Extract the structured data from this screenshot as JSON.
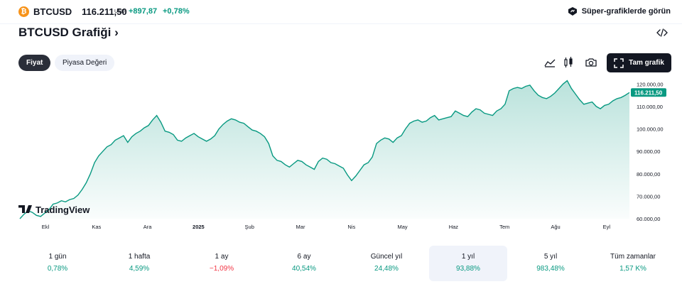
{
  "header": {
    "coin_glyph": "₿",
    "ticker": "BTCUSD",
    "price": "116.211,50",
    "price_unit": "USD",
    "change_abs": "+897,87",
    "change_pct": "+0,78%",
    "supercharts_label": "Süper-grafiklerde görün"
  },
  "page": {
    "title": "BTCUSD Grafiği",
    "title_chevron": "›"
  },
  "tabs": [
    {
      "label": "Fiyat",
      "active": true
    },
    {
      "label": "Piyasa Değeri",
      "active": false
    }
  ],
  "toolbar": {
    "icons": [
      "area-chart-icon",
      "candles-icon",
      "camera-icon"
    ],
    "fullchart_label": "Tam grafik"
  },
  "watermark": "TradingView",
  "colors": {
    "line": "#089981",
    "positive": "#089981",
    "negative": "#f23645",
    "price_tag": "#089981"
  },
  "chart_data": {
    "type": "area",
    "x_tick_labels": [
      "Ekl",
      "Kas",
      "Ara",
      "2025",
      "Şub",
      "Mar",
      "Nis",
      "May",
      "Haz",
      "Tem",
      "Ağu",
      "Eyl"
    ],
    "y_tick_labels": [
      "120.000,00",
      "110.000,00",
      "100.000,00",
      "90.000,00",
      "80.000,00",
      "70.000,00",
      "60.000,00"
    ],
    "ylim": [
      60000,
      122000
    ],
    "last_price_label": "116.211,50",
    "last_value": 116211.5,
    "values": [
      60000,
      62000,
      63500,
      62800,
      61500,
      61000,
      62500,
      64000,
      66500,
      67000,
      68000,
      67500,
      68500,
      69000,
      70500,
      73000,
      76000,
      80000,
      85000,
      88000,
      90000,
      92000,
      93000,
      95000,
      96000,
      97000,
      94000,
      96500,
      98000,
      99000,
      100500,
      101500,
      104000,
      106000,
      103000,
      99000,
      98500,
      97500,
      95000,
      94500,
      96000,
      97000,
      98000,
      96500,
      95500,
      94500,
      95500,
      97000,
      100000,
      102000,
      103500,
      104500,
      104000,
      103000,
      102500,
      101000,
      99500,
      99000,
      98000,
      96500,
      93500,
      88000,
      86000,
      85500,
      84000,
      83000,
      84500,
      86000,
      85500,
      84000,
      83000,
      82000,
      85500,
      87000,
      86500,
      85000,
      84500,
      83500,
      82500,
      79500,
      77000,
      79000,
      81500,
      84000,
      85000,
      87500,
      93500,
      95000,
      96000,
      95500,
      94000,
      96000,
      97000,
      100000,
      102500,
      103500,
      104000,
      103000,
      103500,
      105000,
      106000,
      104000,
      104500,
      105000,
      105500,
      108000,
      107000,
      106000,
      105500,
      107500,
      109000,
      108500,
      107000,
      106500,
      106000,
      108000,
      109000,
      111000,
      117000,
      118000,
      118500,
      118000,
      119000,
      119500,
      117000,
      115000,
      114000,
      113500,
      114500,
      116000,
      118000,
      120000,
      121500,
      118000,
      115500,
      113000,
      111000,
      111500,
      112000,
      110000,
      109000,
      110500,
      111000,
      112500,
      113500,
      114000,
      115000,
      116211.5
    ]
  },
  "periods": [
    {
      "label": "1 gün",
      "value": "0,78%",
      "sign": "pos",
      "selected": false
    },
    {
      "label": "1 hafta",
      "value": "4,59%",
      "sign": "pos",
      "selected": false
    },
    {
      "label": "1 ay",
      "value": "−1,09%",
      "sign": "neg",
      "selected": false
    },
    {
      "label": "6 ay",
      "value": "40,54%",
      "sign": "pos",
      "selected": false
    },
    {
      "label": "Güncel yıl",
      "value": "24,48%",
      "sign": "pos",
      "selected": false
    },
    {
      "label": "1 yıl",
      "value": "93,88%",
      "sign": "pos",
      "selected": true
    },
    {
      "label": "5 yıl",
      "value": "983,48%",
      "sign": "pos",
      "selected": false
    },
    {
      "label": "Tüm zamanlar",
      "value": "1,57 K%",
      "sign": "pos",
      "selected": false
    }
  ]
}
